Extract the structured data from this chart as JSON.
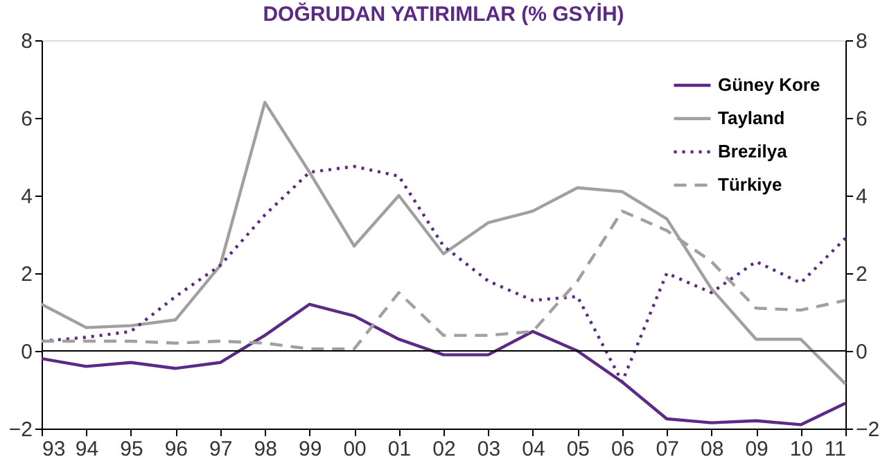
{
  "chart_data": {
    "type": "line",
    "title": "DOĞRUDAN YATIRIMLAR (% GSYİH)",
    "categories": [
      "93",
      "94",
      "95",
      "96",
      "97",
      "98",
      "99",
      "00",
      "01",
      "02",
      "03",
      "04",
      "05",
      "06",
      "07",
      "08",
      "09",
      "10",
      "11"
    ],
    "series": [
      {
        "name": "Güney Kore",
        "color": "#5b2a86",
        "line_style": "solid",
        "values": [
          -0.2,
          -0.4,
          -0.3,
          -0.45,
          -0.3,
          0.4,
          1.2,
          0.9,
          0.3,
          -0.1,
          -0.1,
          0.5,
          0.0,
          -0.8,
          -1.75,
          -1.85,
          -1.8,
          -1.9,
          -1.35
        ]
      },
      {
        "name": "Tayland",
        "color": "#a0a0a0",
        "line_style": "solid",
        "values": [
          1.2,
          0.6,
          0.65,
          0.8,
          2.2,
          6.4,
          4.6,
          2.7,
          4.0,
          2.5,
          3.3,
          3.6,
          4.2,
          4.1,
          3.4,
          1.6,
          0.3,
          0.3,
          -0.85
        ]
      },
      {
        "name": "Brezilya",
        "color": "#5b2a86",
        "line_style": "dotted",
        "values": [
          0.25,
          0.35,
          0.5,
          1.4,
          2.2,
          3.5,
          4.6,
          4.75,
          4.5,
          2.7,
          1.8,
          1.3,
          1.4,
          -0.8,
          2.0,
          1.5,
          2.3,
          1.75,
          2.9
        ]
      },
      {
        "name": "Türkiye",
        "color": "#a0a0a0",
        "line_style": "dashed",
        "values": [
          0.25,
          0.25,
          0.25,
          0.2,
          0.25,
          0.2,
          0.05,
          0.05,
          1.5,
          0.4,
          0.4,
          0.5,
          1.8,
          3.6,
          3.1,
          2.3,
          1.1,
          1.05,
          1.3
        ]
      }
    ],
    "ylim": [
      -2,
      8
    ],
    "yticks": [
      -2,
      0,
      2,
      4,
      6,
      8
    ],
    "y2lim": [
      -2,
      8
    ],
    "y2ticks": [
      -2,
      0,
      2,
      4,
      6,
      8
    ],
    "ref_lines": [
      {
        "axis": "y",
        "value": 0,
        "color": "#000000"
      }
    ],
    "grid": false,
    "legend": "top right",
    "marker": "none"
  }
}
